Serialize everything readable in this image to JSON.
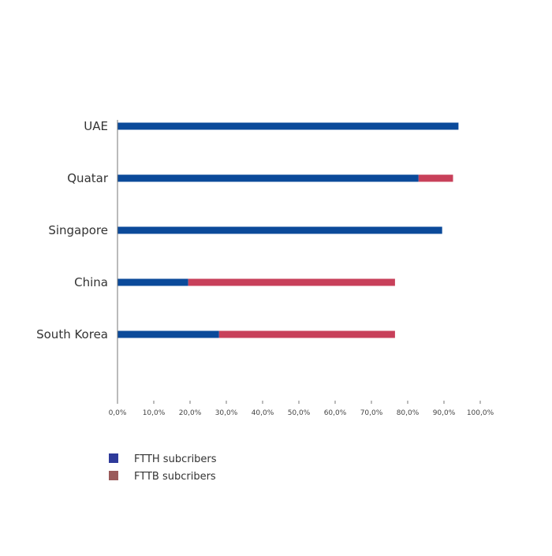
{
  "chart_data": {
    "type": "bar",
    "orientation": "horizontal",
    "stacked": true,
    "categories": [
      "UAE",
      "Quatar",
      "Singapore",
      "China",
      "South Korea"
    ],
    "series": [
      {
        "name": "FTTH subcribers",
        "values": [
          94,
          83,
          89.5,
          19.5,
          28
        ],
        "color": "#0b4a9a"
      },
      {
        "name": "FTTB subcribers",
        "values": [
          0,
          9.5,
          0,
          57,
          48.5
        ],
        "color": "#c8405a"
      }
    ],
    "xlim": [
      0,
      100
    ],
    "x_ticks": [
      "0,0%",
      "10,0%",
      "20,0%",
      "30,0%",
      "40,0%",
      "50,0%",
      "60,0%",
      "70,0%",
      "80,0%",
      "90,0%",
      "100,0%"
    ],
    "grid": false,
    "legend": {
      "placement": "bottom-left",
      "items": [
        {
          "label": "FTTH subcribers",
          "color": "#2e3a9a"
        },
        {
          "label": "FTTB subcribers",
          "color": "#9a5a5a"
        }
      ]
    }
  }
}
